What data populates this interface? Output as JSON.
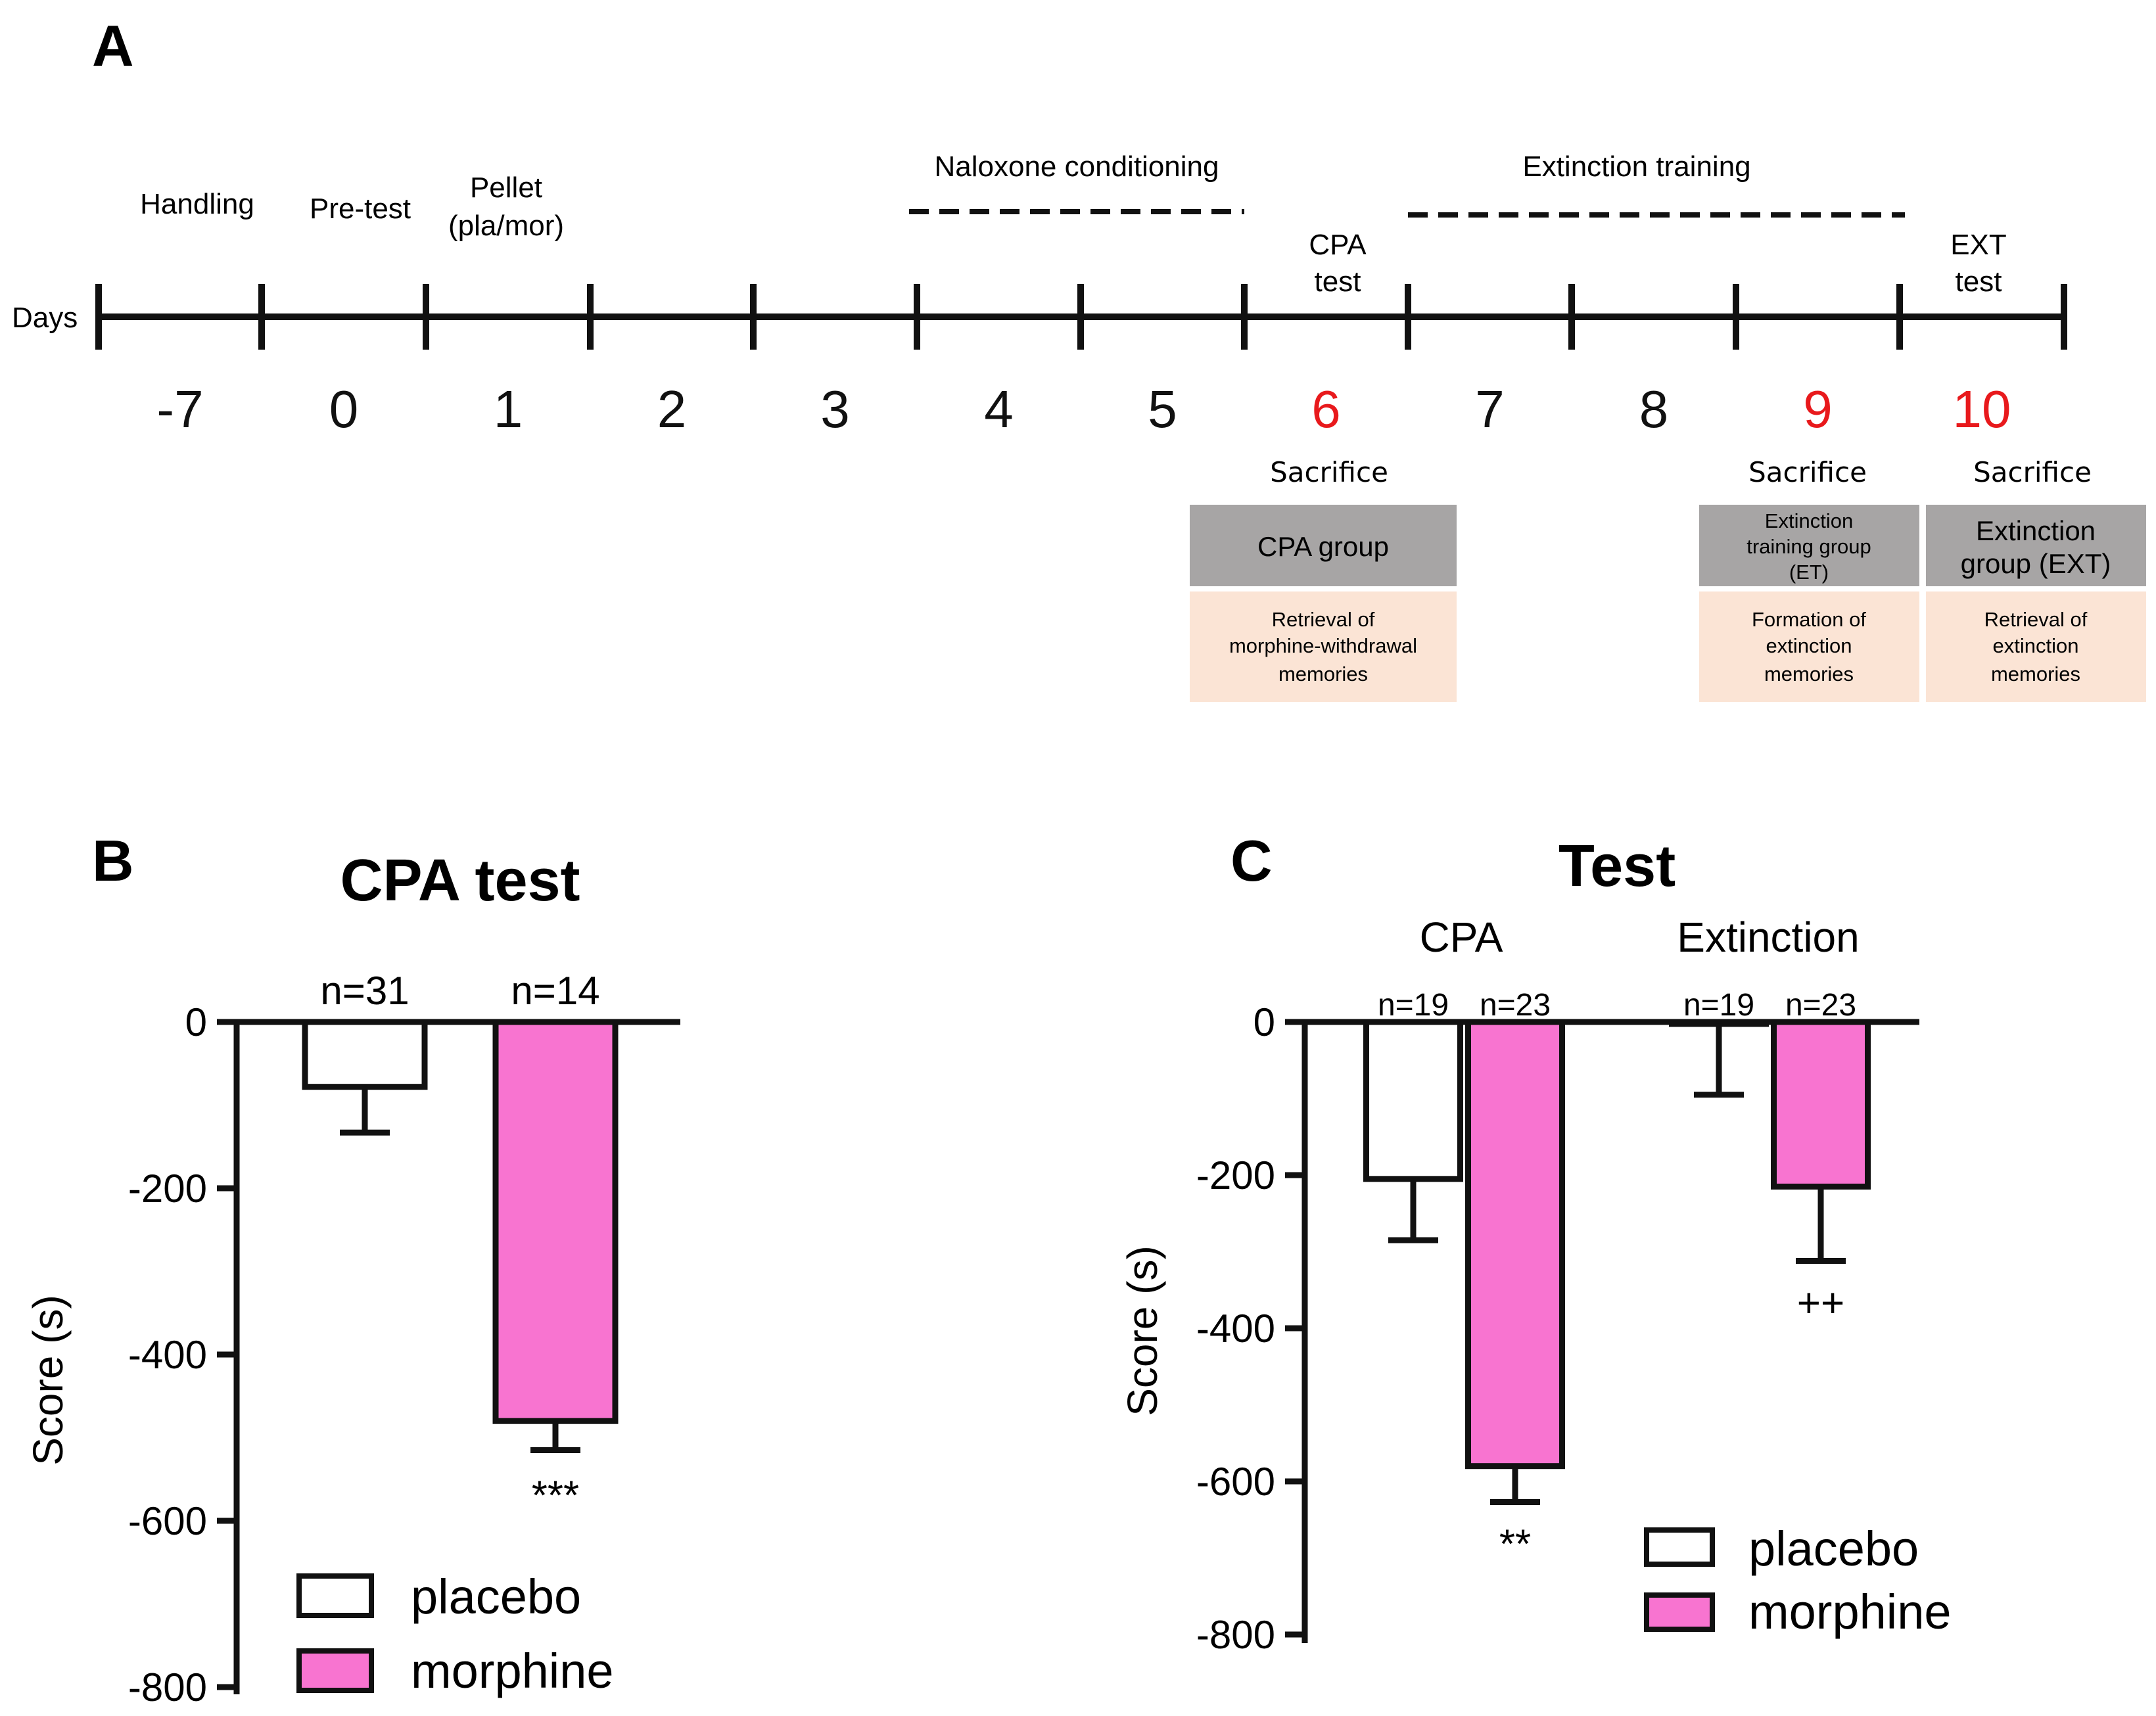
{
  "panel_a": {
    "panel_label": "A",
    "axis_label": "Days",
    "days": [
      {
        "label": "-7",
        "color": "#111111"
      },
      {
        "label": "0",
        "color": "#111111"
      },
      {
        "label": "1",
        "color": "#111111"
      },
      {
        "label": "2",
        "color": "#111111"
      },
      {
        "label": "3",
        "color": "#111111"
      },
      {
        "label": "4",
        "color": "#111111"
      },
      {
        "label": "5",
        "color": "#111111"
      },
      {
        "label": "6",
        "color": "#e8191c"
      },
      {
        "label": "7",
        "color": "#111111"
      },
      {
        "label": "8",
        "color": "#111111"
      },
      {
        "label": "9",
        "color": "#e8191c"
      },
      {
        "label": "10",
        "color": "#e8191c"
      }
    ],
    "phases": {
      "handling": "Handling",
      "pretest": "Pre-test",
      "pellet_line1": "Pellet",
      "pellet_line2": "(pla/mor)",
      "naloxone": "Naloxone conditioning",
      "extinction_training": "Extinction training",
      "cpa_test_line1": "CPA",
      "cpa_test_line2": "test",
      "ext_test_line1": "EXT",
      "ext_test_line2": "test"
    },
    "sacrifice": "Sacrifice",
    "groups": {
      "cpa": {
        "name": "CPA group",
        "desc_line1": "Retrieval of",
        "desc_line2": "morphine-withdrawal",
        "desc_line3": "memories"
      },
      "et": {
        "name_line1": "Extinction",
        "name_line2": "training group",
        "name_line3": "(ET)",
        "desc_line1": "Formation of",
        "desc_line2": "extinction",
        "desc_line3": "memories"
      },
      "ext": {
        "name_line1": "Extinction",
        "name_line2": "group (EXT)",
        "desc_line1": "Retrieval of",
        "desc_line2": "extinction",
        "desc_line3": "memories"
      }
    },
    "colors": {
      "gray_box": "#a7a5a5",
      "peach_box": "#fbe4d5",
      "highlight": "#e8191c"
    }
  },
  "colors": {
    "placebo": "#ffffff",
    "morphine": "#f874d0",
    "stroke": "#111111"
  },
  "chart_data": [
    {
      "panel_label": "B",
      "type": "bar",
      "title": "CPA test",
      "ylabel": "Score (s)",
      "xlabel": "",
      "ylim": [
        -800,
        0
      ],
      "yticks": [
        "0",
        "-200",
        "-400",
        "-600",
        "-800"
      ],
      "categories": [
        "placebo",
        "morphine"
      ],
      "values": [
        -78,
        -480
      ],
      "errors": [
        55,
        35
      ],
      "n_labels": [
        "n=31",
        "n=14"
      ],
      "significance": [
        "",
        "***"
      ],
      "legend": [
        "placebo",
        "morphine"
      ]
    },
    {
      "panel_label": "C",
      "type": "bar",
      "title": "Test",
      "ylabel": "Score (s)",
      "xlabel": "",
      "ylim": [
        -800,
        0
      ],
      "yticks": [
        "0",
        "-200",
        "-400",
        "-600",
        "-800"
      ],
      "groups": [
        "CPA",
        "Extinction"
      ],
      "series": [
        {
          "name": "placebo",
          "values": [
            -205,
            -2
          ],
          "errors": [
            80,
            93
          ],
          "n_labels": [
            "n=19",
            "n=19"
          ],
          "significance": [
            "",
            ""
          ]
        },
        {
          "name": "morphine",
          "values": [
            -580,
            -215
          ],
          "errors": [
            47,
            97
          ],
          "n_labels": [
            "n=23",
            "n=23"
          ],
          "significance": [
            "**",
            "++"
          ]
        }
      ],
      "legend": [
        "placebo",
        "morphine"
      ]
    }
  ]
}
